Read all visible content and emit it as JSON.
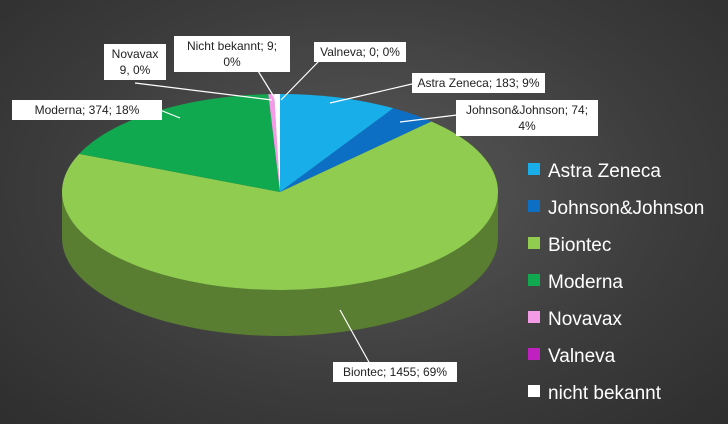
{
  "chart_data": {
    "type": "pie3d",
    "categories": [
      "Astra Zeneca",
      "Johnson&Johnson",
      "Biontec",
      "Moderna",
      "Novavax",
      "Valneva",
      "nicht bekannt"
    ],
    "values": [
      183,
      74,
      1455,
      374,
      9,
      0,
      9
    ],
    "value_labels": [
      "Astra Zeneca; 183; 9%",
      "Johnson&Johnson; 74; 4%",
      "Biontec; 1455; 69%",
      "Moderna; 374; 18%",
      "Novavax 9, 0%",
      "Valneva; 0; 0%",
      "Nicht bekannt; 9; 0%"
    ],
    "colors": [
      "#17aeea",
      "#0c6fc4",
      "#8fcc4f",
      "#10a94f",
      "#f49be8",
      "#c020c0",
      "#ffffff"
    ],
    "legend": "right"
  }
}
